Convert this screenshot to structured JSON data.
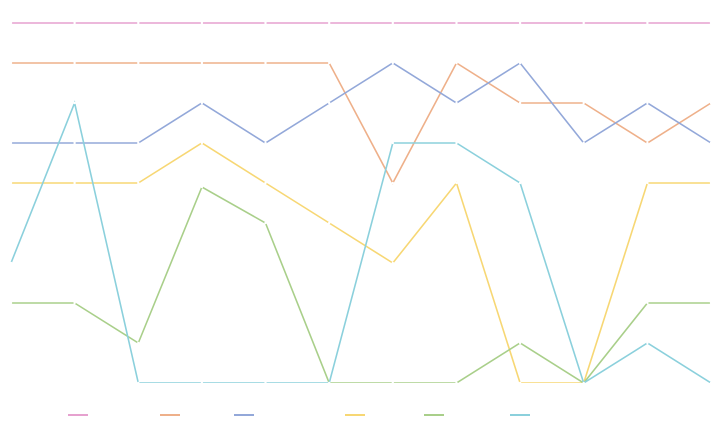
{
  "chart_data": {
    "type": "line",
    "title": "",
    "xlabel": "",
    "ylabel": "",
    "x": [
      0,
      1,
      2,
      3,
      4,
      5,
      6,
      7,
      8,
      9,
      10,
      11
    ],
    "ylim": [
      0,
      9.25
    ],
    "grid": false,
    "legend": {
      "position": "bottom",
      "entries_labeled": false
    },
    "series": [
      {
        "name": "",
        "color": "#e6a1cf",
        "values": [
          9,
          9,
          9,
          9,
          9,
          9,
          9,
          9,
          9,
          9,
          9,
          9
        ]
      },
      {
        "name": "",
        "color": "#eeb08a",
        "values": [
          8,
          8,
          8,
          8,
          8,
          8,
          5,
          8,
          7,
          7,
          6,
          7
        ]
      },
      {
        "name": "",
        "color": "#93a8d9",
        "values": [
          6,
          6,
          6,
          7,
          6,
          7,
          8,
          7,
          8,
          6,
          7,
          6
        ]
      },
      {
        "name": "",
        "color": "#f7d774",
        "values": [
          5,
          5,
          5,
          6,
          5,
          4,
          3,
          5,
          0,
          0,
          5,
          5
        ]
      },
      {
        "name": "",
        "color": "#a9cf8a",
        "values": [
          2,
          2,
          1,
          4.9,
          4,
          0,
          0,
          0,
          1,
          0,
          2,
          2
        ]
      },
      {
        "name": "",
        "color": "#8bd0dc",
        "values": [
          3,
          7,
          0,
          0,
          0,
          0,
          6,
          6,
          5,
          0,
          1,
          0
        ]
      }
    ]
  }
}
